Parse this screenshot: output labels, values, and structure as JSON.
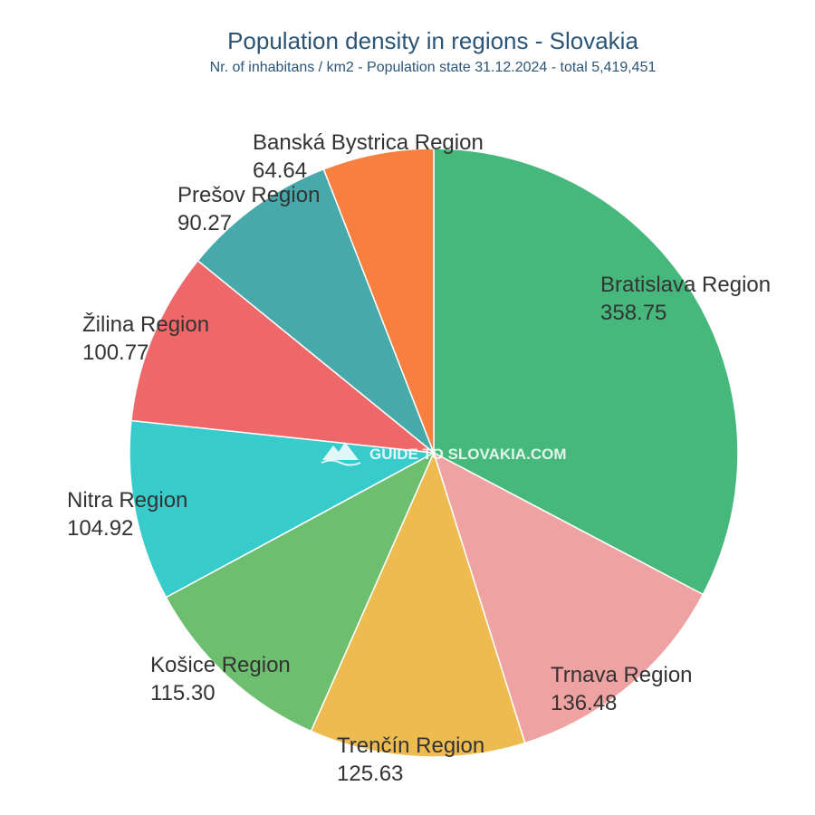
{
  "chart_data": {
    "type": "pie",
    "title": "Population density in regions - Slovakia",
    "subtitle": "Nr. of inhabitans / km2 - Population state 31.12.2024 - total 5,419,451",
    "slices": [
      {
        "label": "Bratislava Region",
        "value": 358.75,
        "value_text": "358.75",
        "color": "#46b87c"
      },
      {
        "label": "Trnava Region",
        "value": 136.48,
        "value_text": "136.48",
        "color": "#eea2a2"
      },
      {
        "label": "Trenčín Region",
        "value": 125.63,
        "value_text": "125.63",
        "color": "#eebb50"
      },
      {
        "label": "Košice Region",
        "value": 115.3,
        "value_text": "115.30",
        "color": "#6dbe6e"
      },
      {
        "label": "Nitra Region",
        "value": 104.92,
        "value_text": "104.92",
        "color": "#38cbcb"
      },
      {
        "label": "Žilina Region",
        "value": 100.77,
        "value_text": "100.77",
        "color": "#ee686a"
      },
      {
        "label": "Prešov Region",
        "value": 90.27,
        "value_text": "90.27",
        "color": "#48a9aa"
      },
      {
        "label": "Banská Bystrica Region",
        "value": 64.64,
        "value_text": "64.64",
        "color": "#f78040"
      }
    ]
  },
  "watermark": {
    "text": "GUIDE TO SLOVAKIA.COM"
  }
}
